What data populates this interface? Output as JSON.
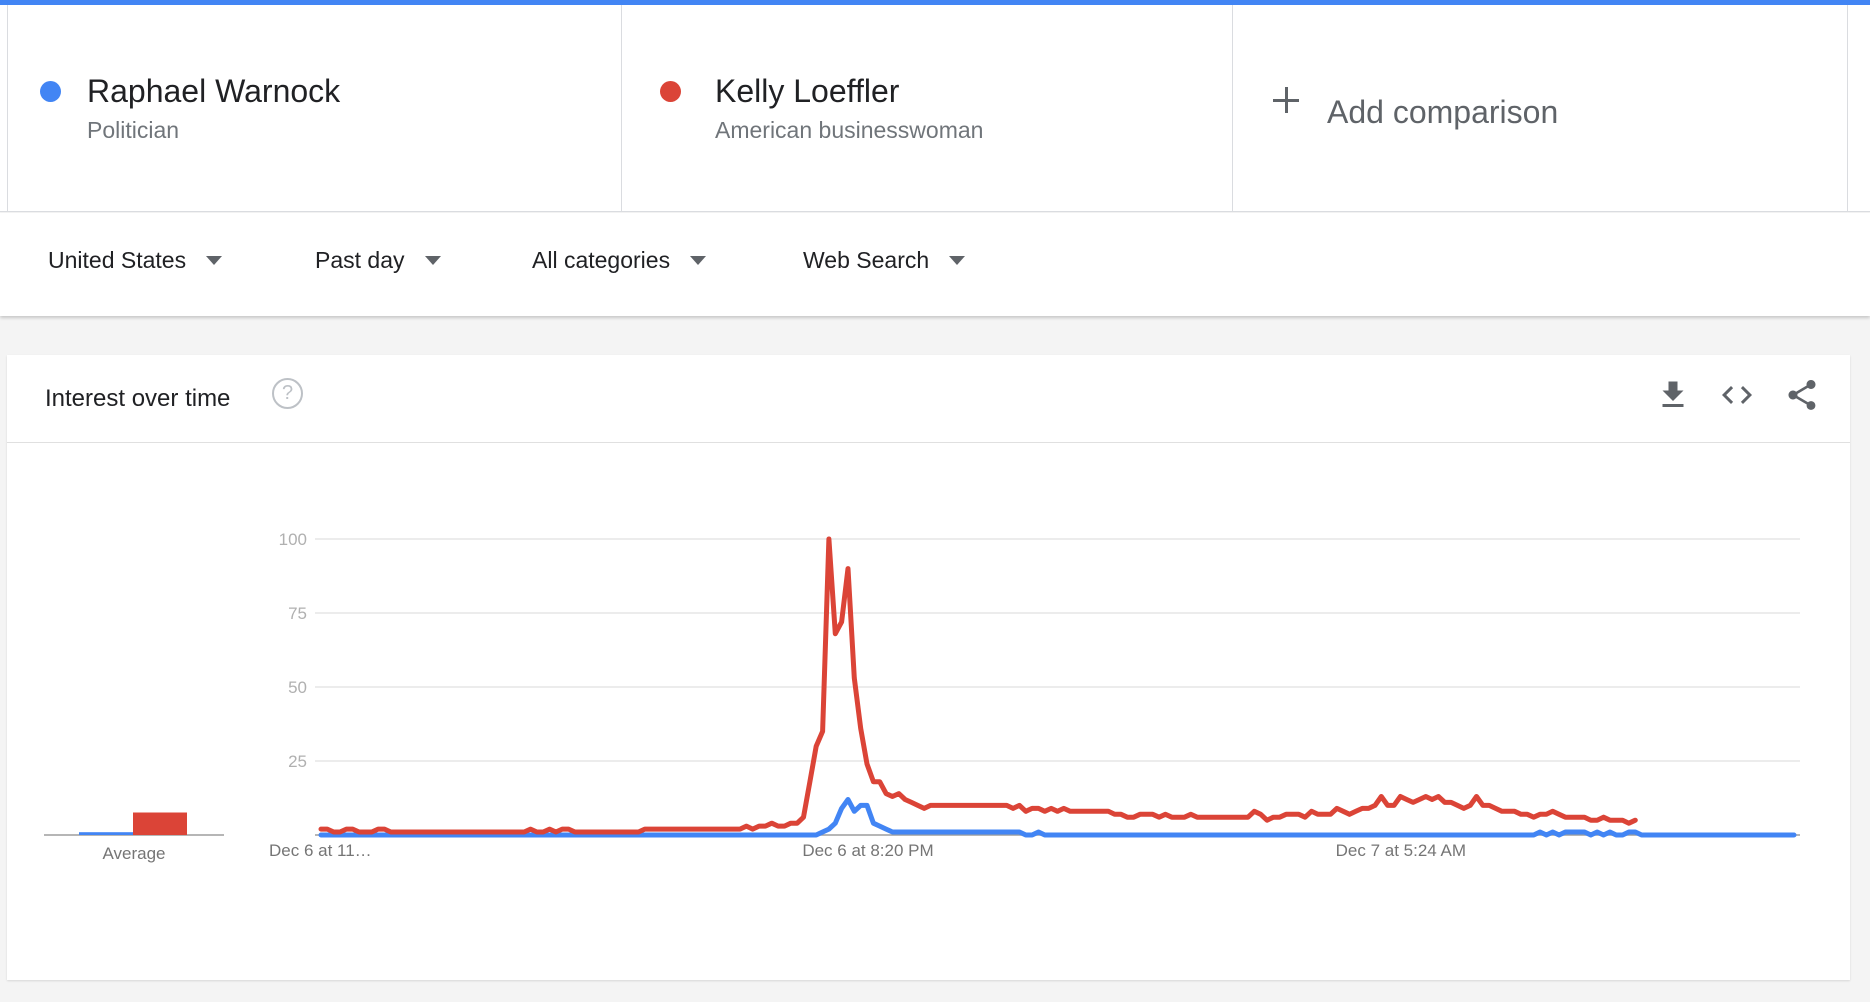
{
  "compare": {
    "terms": [
      {
        "name": "Raphael Warnock",
        "subtitle": "Politician",
        "color": "#4285f4"
      },
      {
        "name": "Kelly Loeffler",
        "subtitle": "American businesswoman",
        "color": "#db4437"
      }
    ],
    "add_label": "Add comparison"
  },
  "filters": {
    "region": "United States",
    "time": "Past day",
    "category": "All categories",
    "search_type": "Web Search"
  },
  "card": {
    "title": "Interest over time",
    "help_glyph": "?"
  },
  "icons": [
    "help-icon",
    "download-icon",
    "embed-code-icon",
    "share-icon",
    "plus-icon",
    "dropdown-caret-icon"
  ],
  "chart_data": {
    "type": "line",
    "ylim": [
      0,
      100
    ],
    "yticks": [
      "100",
      "75",
      "50",
      "25"
    ],
    "x_tick_labels": [
      "Dec 6 at 11…",
      "Dec 6 at 8:20 PM",
      "Dec 7 at 5:24 AM"
    ],
    "x_tick_index": [
      0,
      84,
      168
    ],
    "average_label": "Average",
    "averages": [
      1,
      8
    ],
    "grid": true,
    "series": [
      {
        "name": "Raphael Warnock",
        "color": "#4285f4",
        "values": [
          0,
          0,
          0,
          0,
          0,
          0,
          0,
          0,
          0,
          0,
          0,
          0,
          0,
          0,
          0,
          0,
          0,
          0,
          0,
          0,
          0,
          0,
          0,
          0,
          0,
          0,
          0,
          0,
          0,
          0,
          0,
          0,
          0,
          0,
          0,
          0,
          0,
          0,
          0,
          0,
          0,
          0,
          0,
          0,
          0,
          0,
          0,
          0,
          0,
          0,
          0,
          0,
          0,
          0,
          0,
          0,
          0,
          0,
          0,
          0,
          0,
          0,
          0,
          0,
          0,
          0,
          0,
          0,
          0,
          0,
          0,
          0,
          0,
          0,
          0,
          0,
          0,
          0,
          0,
          1,
          2,
          4,
          9,
          12,
          8,
          10,
          10,
          4,
          3,
          2,
          1,
          1,
          1,
          1,
          1,
          1,
          1,
          1,
          1,
          1,
          1,
          1,
          1,
          1,
          1,
          1,
          1,
          1,
          1,
          1,
          1,
          0,
          0,
          1,
          0,
          0,
          0,
          0,
          0,
          0,
          0,
          0,
          0,
          0,
          0,
          0,
          0,
          0,
          0,
          0,
          0,
          0,
          0,
          0,
          0,
          0,
          0,
          0,
          0,
          0,
          0,
          0,
          0,
          0,
          0,
          0,
          0,
          0,
          0,
          0,
          0,
          0,
          0,
          0,
          0,
          0,
          0,
          0,
          0,
          0,
          0,
          0,
          0,
          0,
          0,
          0,
          0,
          0,
          0,
          0,
          0,
          0,
          0,
          0,
          0,
          0,
          0,
          0,
          0,
          0,
          0,
          0,
          0,
          0,
          0,
          0,
          0,
          0,
          0,
          0,
          0,
          0,
          1,
          0,
          1,
          0,
          1,
          1,
          1,
          1,
          0,
          1,
          0,
          1,
          0,
          0,
          1,
          1,
          0,
          0,
          0,
          0,
          0,
          0,
          0,
          0,
          0,
          0,
          0,
          0,
          0,
          0,
          0,
          0,
          0,
          0,
          0,
          0,
          0,
          0,
          0,
          0,
          0
        ]
      },
      {
        "name": "Kelly Loeffler",
        "color": "#db4437",
        "values": [
          2,
          2,
          1,
          1,
          2,
          2,
          1,
          1,
          1,
          2,
          2,
          1,
          1,
          1,
          1,
          1,
          1,
          1,
          1,
          1,
          1,
          1,
          1,
          1,
          1,
          1,
          1,
          1,
          1,
          1,
          1,
          1,
          1,
          2,
          1,
          1,
          2,
          1,
          2,
          2,
          1,
          1,
          1,
          1,
          1,
          1,
          1,
          1,
          1,
          1,
          1,
          2,
          2,
          2,
          2,
          2,
          2,
          2,
          2,
          2,
          2,
          2,
          2,
          2,
          2,
          2,
          2,
          3,
          2,
          3,
          3,
          4,
          3,
          3,
          4,
          4,
          6,
          18,
          30,
          35,
          100,
          68,
          72,
          90,
          53,
          36,
          24,
          18,
          18,
          14,
          13,
          14,
          12,
          11,
          10,
          9,
          10,
          10,
          10,
          10,
          10,
          10,
          10,
          10,
          10,
          10,
          10,
          10,
          10,
          9,
          10,
          8,
          9,
          9,
          8,
          9,
          8,
          9,
          8,
          8,
          8,
          8,
          8,
          8,
          8,
          7,
          7,
          6,
          6,
          7,
          7,
          7,
          6,
          7,
          6,
          6,
          6,
          7,
          6,
          6,
          6,
          6,
          6,
          6,
          6,
          6,
          6,
          8,
          7,
          5,
          6,
          6,
          7,
          7,
          7,
          6,
          8,
          7,
          7,
          7,
          9,
          8,
          7,
          8,
          9,
          9,
          10,
          13,
          10,
          10,
          13,
          12,
          11,
          12,
          13,
          12,
          13,
          11,
          11,
          10,
          9,
          10,
          13,
          10,
          10,
          9,
          8,
          8,
          8,
          7,
          7,
          6,
          7,
          7,
          8,
          7,
          6,
          6,
          6,
          6,
          5,
          5,
          6,
          5,
          5,
          5,
          4,
          5
        ]
      }
    ]
  }
}
